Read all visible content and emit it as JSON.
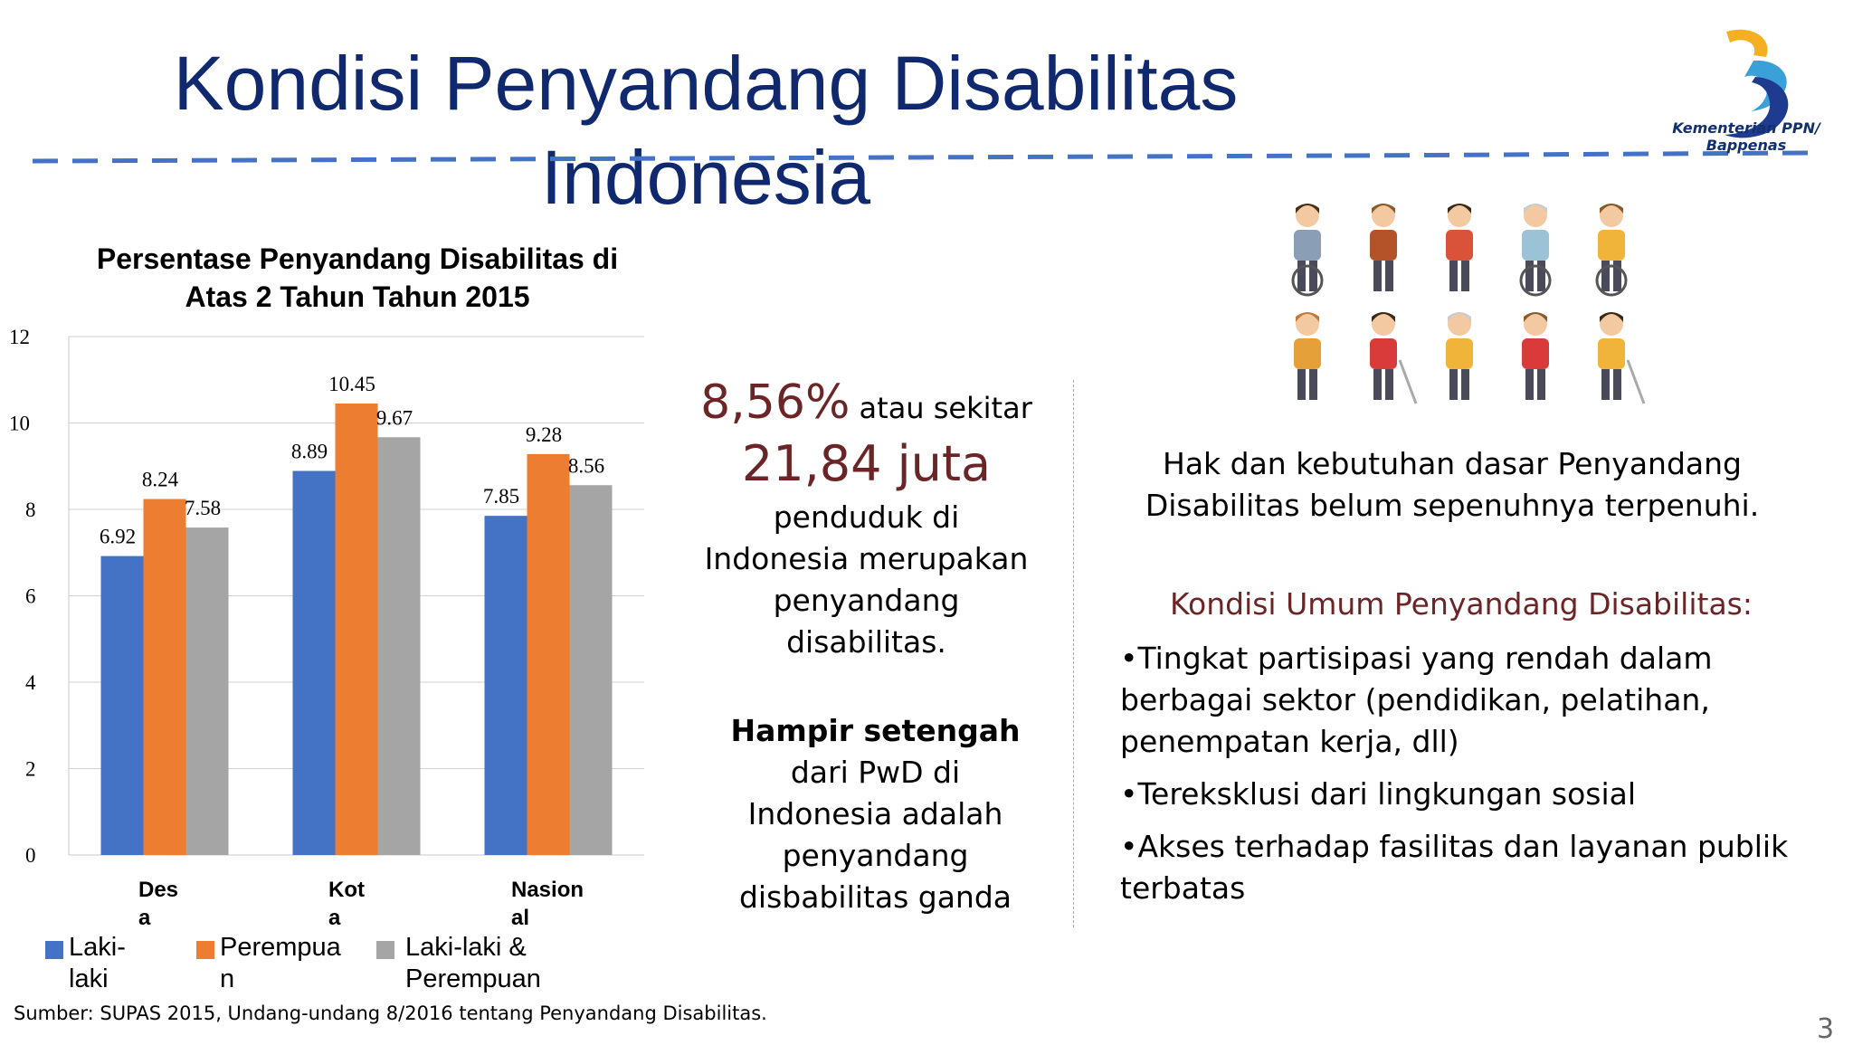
{
  "slide": {
    "title": "Kondisi Penyandang Disabilitas Indonesia",
    "logo": {
      "icon": "bappenas-logo-icon",
      "text": "Kementerian PPN/ Bappenas",
      "colors": [
        "#1e3b8f",
        "#f5b021",
        "#3aa0d8"
      ]
    },
    "divider_color": "#4472c4",
    "page_number": "3",
    "source": "Sumber: SUPAS 2015, Undang-undang 8/2016 tentang Penyandang Disabilitas."
  },
  "chart_data": {
    "type": "bar",
    "title": "Persentase Penyandang Disabilitas di Atas 2 Tahun Tahun 2015",
    "categories": [
      "Desa",
      "Kota",
      "Nasional"
    ],
    "category_display": [
      [
        "Des",
        "a"
      ],
      [
        "Kot",
        "a"
      ],
      [
        "Nasion",
        "al"
      ]
    ],
    "series": [
      {
        "name": "Laki-laki",
        "name_display": [
          "Laki-",
          "laki"
        ],
        "color": "#4472c4",
        "values": [
          6.92,
          8.89,
          7.85
        ]
      },
      {
        "name": "Perempuan",
        "name_display": [
          "Perempua",
          "n"
        ],
        "color": "#ed7d31",
        "values": [
          8.24,
          10.45,
          9.28
        ]
      },
      {
        "name": "Laki-laki & Perempuan",
        "name_display": [
          "Laki-laki &",
          "Perempuan"
        ],
        "color": "#a5a5a5",
        "values": [
          7.58,
          9.67,
          8.56
        ]
      }
    ],
    "ylim": [
      0,
      12
    ],
    "yticks": [
      0,
      2,
      4,
      6,
      8,
      10,
      12
    ],
    "grid": true,
    "legend_position": "bottom",
    "xlabel": "",
    "ylabel": ""
  },
  "middle": {
    "pct": "8,56%",
    "pct_suffix": " atau sekitar",
    "count": "21,84 juta",
    "desc": "penduduk di Indonesia merupakan penyandang disabilitas.",
    "half_bold": "Hampir setengah",
    "half_rest": "dari PwD di Indonesia adalah penyandang disbabilitas ganda"
  },
  "right": {
    "illustration_icon": "people-with-disabilities-icon",
    "intro": "Hak dan kebutuhan dasar Penyandang Disabilitas belum sepenuhnya terpenuhi.",
    "heading": "Kondisi Umum Penyandang Disabilitas:",
    "bullets": [
      "Tingkat partisipasi yang rendah dalam berbagai sektor (pendidikan, pelatihan, penempatan kerja, dll)",
      "Tereksklusi dari lingkungan sosial",
      "Akses terhadap fasilitas dan layanan  publik terbatas"
    ]
  }
}
